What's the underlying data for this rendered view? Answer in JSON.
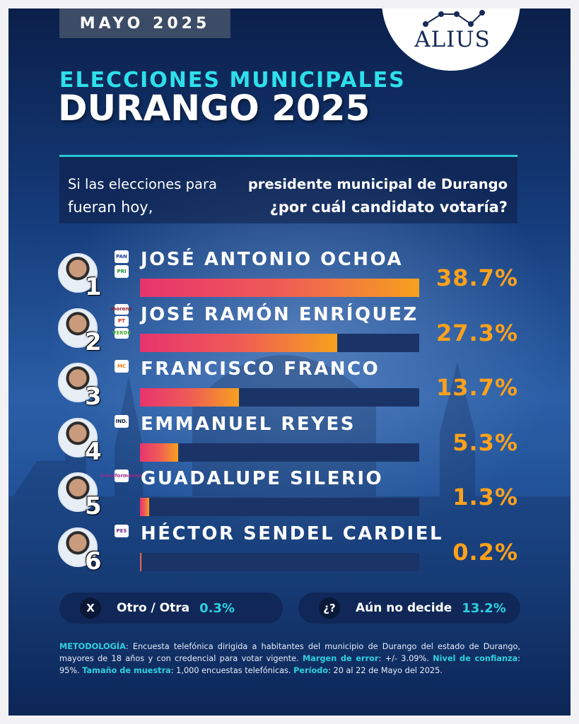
{
  "header": {
    "date": "MAYO 2025",
    "brand": "ALIUS",
    "subtitle": "ELECCIONES MUNICIPALES",
    "title": "DURANGO 2025"
  },
  "question": {
    "part1": "Si las elecciones para",
    "part1_bold": "presidente municipal de Durango",
    "part2": "fueran hoy,",
    "part2_bold": "¿por cuál candidato votaría?"
  },
  "chart_data": {
    "type": "bar",
    "orientation": "horizontal",
    "categories": [
      "JOSÉ ANTONIO OCHOA",
      "JOSÉ RAMÓN ENRÍQUEZ",
      "FRANCISCO FRANCO",
      "EMMANUEL REYES",
      "GUADALUPE SILERIO",
      "HÉCTOR SENDEL CARDIEL"
    ],
    "values": [
      38.7,
      27.3,
      13.7,
      5.3,
      1.3,
      0.2
    ],
    "value_labels": [
      "38.7%",
      "27.3%",
      "13.7%",
      "5.3%",
      "1.3%",
      "0.2%"
    ],
    "ranks": [
      "1",
      "2",
      "3",
      "4",
      "5",
      "6"
    ],
    "party_logos": [
      [
        "PAN",
        "PRI"
      ],
      [
        "morena",
        "PT",
        "VERDE"
      ],
      [
        "MC"
      ],
      [
        "IND."
      ],
      [
        "transformación"
      ],
      [
        "PES"
      ]
    ],
    "xlim": [
      0,
      38.7
    ],
    "grid": false,
    "legend": "none"
  },
  "others": [
    {
      "icon": "X",
      "label": "Otro / Otra",
      "value": "0.3%"
    },
    {
      "icon": "¿?",
      "label": "Aún no decide",
      "value": "13.2%"
    }
  ],
  "methodology": {
    "k1": "METODOLOGÍA",
    "t1": ": Encuesta telefónica dirigida a habitantes del municipio de Durango del estado de Durango, mayores de 18 años y con credencial para votar vigente. ",
    "k2": "Margen de error",
    "t2": ": +/- 3.09%. ",
    "k3": "Nivel de confianza",
    "t3": ": 95%. ",
    "k4": "Tamaño de muestra",
    "t4": ": 1,000 encuestas telefónicas. ",
    "k5": "Período",
    "t5": ": 20 al 22 de Mayo del 2025."
  },
  "colors": {
    "accent_cyan": "#2ee0ea",
    "value_orange": "#ffa11a",
    "bar_start": "#e7346e",
    "bar_end": "#f6a11e"
  }
}
